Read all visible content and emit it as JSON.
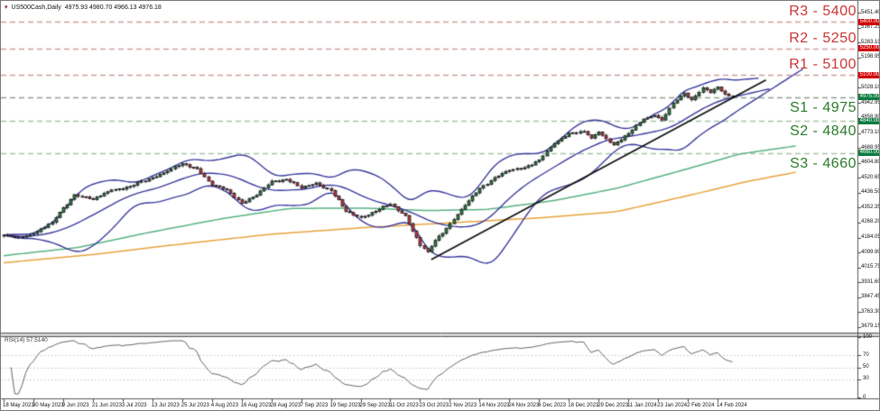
{
  "window": {
    "symbol_marker": "▾",
    "title": "US500Cash,Daily",
    "ohlc_text": "4975.93 4980.70 4966.13 4976.18"
  },
  "colors": {
    "resistance_line": "#cf9d9d",
    "resistance_label": "#cc3333",
    "resistance_badge": "#d40000",
    "support_line_s1": "#8fa08f",
    "support_line": "#a7c4a7",
    "support_label": "#2a7a2a",
    "support_badge": "#0a7c3e",
    "candle_up": "#2f7d3a",
    "candle_down": "#bf3a3a",
    "candle_outline": "#1a1a24",
    "bollinger": "#3b3b9e",
    "ma_fast": "#57b283",
    "ma_slow": "#e8a33d",
    "trendline": "#111111",
    "rsi_line": "#666666",
    "rsi_grid": "#c4c4c4",
    "axis_text": "#111111",
    "border": "#555555"
  },
  "levels": {
    "resistance": [
      {
        "label": "R3 - 5400",
        "price": 5400,
        "badge": "5400.00"
      },
      {
        "label": "R2 - 5250",
        "price": 5250,
        "badge": "5250.00"
      },
      {
        "label": "R1 - 5100",
        "price": 5100,
        "badge": "5100.00"
      }
    ],
    "support": [
      {
        "label": "S1 - 4975",
        "price": 4975,
        "badge": "4975.00"
      },
      {
        "label": "S2 - 4840",
        "price": 4840,
        "badge": "4840.00"
      },
      {
        "label": "S3 - 4660",
        "price": 4660,
        "badge": "4660.00"
      }
    ]
  },
  "price_axis": {
    "ticks": [
      "5451.40",
      "5367.25",
      "5283.10",
      "5198.95",
      "5028.10",
      "4942.95",
      "4858.80",
      "4773.10",
      "4688.95",
      "4604.80",
      "4520.65",
      "4436.50",
      "4352.35",
      "4268.20",
      "4184.05",
      "4099.90",
      "4015.75",
      "3931.60",
      "3847.45",
      "3763.30",
      "3679.15"
    ]
  },
  "date_axis": {
    "bars_per_label": 8,
    "labels": [
      "18 May 2023",
      "30 May 2023",
      "9 Jun 2023",
      "21 Jun 2023",
      "3 Jul 2023",
      "13 Jul 2023",
      "25 Jul 2023",
      "4 Aug 2023",
      "16 Aug 2023",
      "28 Aug 2023",
      "7 Sep 2023",
      "19 Sep 2023",
      "29 Sep 2023",
      "11 Oct 2023",
      "23 Oct 2023",
      "2 Nov 2023",
      "14 Nov 2023",
      "24 Nov 2023",
      "6 Dec 2023",
      "18 Dec 2023",
      "29 Dec 2023",
      "11 Jan 2024",
      "23 Jan 2024",
      "2 Feb 2024",
      "14 Feb 2024"
    ]
  },
  "chart_data": {
    "type": "candlestick",
    "symbol": "US500Cash",
    "timeframe": "Daily",
    "bar_count": 197,
    "y_range": [
      3655,
      5478
    ],
    "close_anchors": [
      [
        0,
        4198
      ],
      [
        4,
        4182
      ],
      [
        8,
        4206
      ],
      [
        13,
        4270
      ],
      [
        19,
        4426
      ],
      [
        24,
        4398
      ],
      [
        29,
        4452
      ],
      [
        34,
        4472
      ],
      [
        40,
        4522
      ],
      [
        44,
        4558
      ],
      [
        48,
        4600
      ],
      [
        52,
        4572
      ],
      [
        56,
        4478
      ],
      [
        60,
        4452
      ],
      [
        64,
        4378
      ],
      [
        68,
        4422
      ],
      [
        72,
        4502
      ],
      [
        76,
        4512
      ],
      [
        80,
        4462
      ],
      [
        84,
        4492
      ],
      [
        88,
        4448
      ],
      [
        92,
        4330
      ],
      [
        96,
        4298
      ],
      [
        100,
        4332
      ],
      [
        104,
        4372
      ],
      [
        108,
        4308
      ],
      [
        112,
        4138
      ],
      [
        114,
        4104
      ],
      [
        116,
        4168
      ],
      [
        120,
        4262
      ],
      [
        124,
        4365
      ],
      [
        128,
        4462
      ],
      [
        132,
        4522
      ],
      [
        136,
        4562
      ],
      [
        140,
        4578
      ],
      [
        144,
        4622
      ],
      [
        148,
        4712
      ],
      [
        152,
        4772
      ],
      [
        156,
        4782
      ],
      [
        158,
        4744
      ],
      [
        160,
        4778
      ],
      [
        164,
        4706
      ],
      [
        168,
        4770
      ],
      [
        172,
        4852
      ],
      [
        175,
        4872
      ],
      [
        177,
        4846
      ],
      [
        180,
        4942
      ],
      [
        183,
        4998
      ],
      [
        185,
        4960
      ],
      [
        188,
        5028
      ],
      [
        190,
        5000
      ],
      [
        192,
        5032
      ],
      [
        194,
        4992
      ],
      [
        196,
        4976.18
      ]
    ],
    "bollinger": {
      "period": 20,
      "deviation": 2
    },
    "ma_fast_anchors": [
      [
        0,
        4082
      ],
      [
        20,
        4128
      ],
      [
        38,
        4208
      ],
      [
        58,
        4288
      ],
      [
        77,
        4348
      ],
      [
        97,
        4350
      ],
      [
        114,
        4336
      ],
      [
        130,
        4342
      ],
      [
        148,
        4392
      ],
      [
        165,
        4462
      ],
      [
        182,
        4560
      ],
      [
        198,
        4655
      ],
      [
        213,
        4700
      ]
    ],
    "ma_slow_anchors": [
      [
        0,
        4042
      ],
      [
        24,
        4088
      ],
      [
        48,
        4148
      ],
      [
        72,
        4203
      ],
      [
        97,
        4240
      ],
      [
        121,
        4268
      ],
      [
        145,
        4296
      ],
      [
        165,
        4330
      ],
      [
        184,
        4420
      ],
      [
        200,
        4500
      ],
      [
        213,
        4552
      ]
    ],
    "trendline": {
      "from": [
        115,
        4060
      ],
      "to": [
        205,
        5072
      ]
    }
  },
  "rsi": {
    "name": "RSI(14)",
    "value": "57.5140",
    "period": 14,
    "grid_levels": [
      70,
      50,
      30
    ],
    "axis_labels": [
      "100",
      "70",
      "50",
      "30",
      "0"
    ],
    "range": [
      0,
      100
    ]
  }
}
